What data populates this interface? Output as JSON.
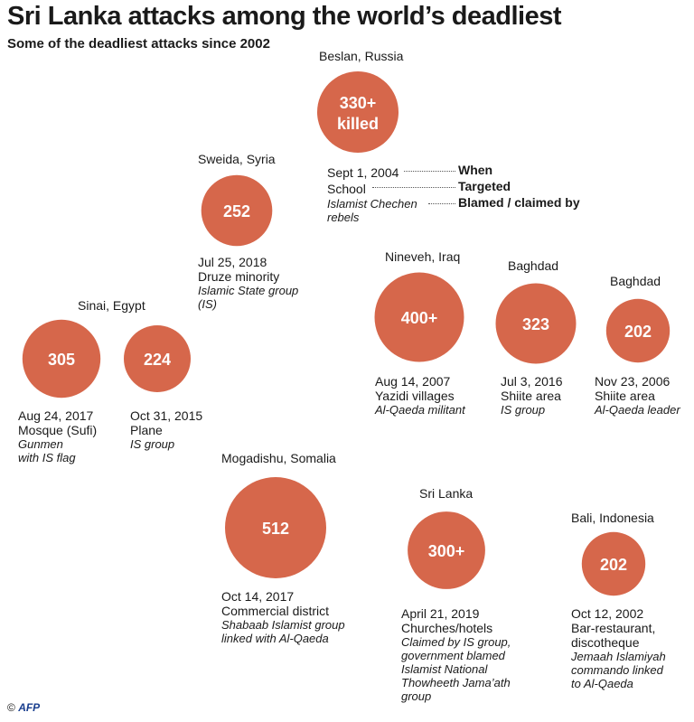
{
  "title": "Sri Lanka attacks among the world’s deadliest",
  "subtitle": "Some of the deadliest attacks since 2002",
  "colors": {
    "bubble": "#d6674b",
    "text": "#1a1a1a"
  },
  "legend": {
    "when": "When",
    "targeted": "Targeted",
    "blamed": "Blamed / claimed by"
  },
  "credit": {
    "symbol": "©",
    "logo": "AFP"
  },
  "chart_data": {
    "type": "bubble",
    "title": "Sri Lanka attacks among the world’s deadliest",
    "subtitle": "Some of the deadliest attacks since 2002",
    "unit": "killed",
    "attacks": [
      {
        "location": "Beslan, Russia",
        "label": "330+",
        "label2": "killed",
        "deaths": 330,
        "date": "Sept 1, 2004",
        "target": "School",
        "blamed": [
          "Islamist Chechen",
          "rebels"
        ]
      },
      {
        "location": "Sweida, Syria",
        "label": "252",
        "deaths": 252,
        "date": "Jul 25, 2018",
        "target": "Druze minority",
        "blamed": [
          "Islamic State group",
          "(IS)"
        ]
      },
      {
        "location": "Nineveh, Iraq",
        "label": "400+",
        "deaths": 400,
        "date": "Aug 14, 2007",
        "target": "Yazidi villages",
        "blamed": [
          "Al-Qaeda militant"
        ]
      },
      {
        "location": "Baghdad",
        "label": "323",
        "deaths": 323,
        "date": "Jul 3, 2016",
        "target": "Shiite area",
        "blamed": [
          "IS group"
        ]
      },
      {
        "location": "Baghdad",
        "label": "202",
        "deaths": 202,
        "date": "Nov 23, 2006",
        "target": "Shiite area",
        "blamed": [
          "Al-Qaeda leader"
        ]
      },
      {
        "location": "Sinai, Egypt",
        "label": "305",
        "deaths": 305,
        "date": "Aug 24, 2017",
        "target": "Mosque (Sufi)",
        "blamed": [
          "Gunmen",
          "with IS flag"
        ]
      },
      {
        "location": "",
        "label": "224",
        "deaths": 224,
        "date": "Oct 31, 2015",
        "target": "Plane",
        "blamed": [
          "IS group"
        ]
      },
      {
        "location": "Mogadishu, Somalia",
        "label": "512",
        "deaths": 512,
        "date": "Oct 14, 2017",
        "target": "Commercial district",
        "blamed": [
          "Shabaab Islamist group",
          "linked with Al-Qaeda"
        ]
      },
      {
        "location": "Sri Lanka",
        "label": "300+",
        "deaths": 300,
        "date": "April 21, 2019",
        "target": "Churches/hotels",
        "blamed": [
          "Claimed by IS group,",
          "government blamed",
          "Islamist National",
          "Thowheeth Jama’ath",
          "group"
        ]
      },
      {
        "location": "Bali, Indonesia",
        "label": "202",
        "deaths": 202,
        "date": "Oct 12, 2002",
        "target": [
          "Bar-restaurant,",
          "discotheque"
        ],
        "blamed": [
          "Jemaah Islamiyah",
          "commando linked",
          "to Al-Qaeda"
        ]
      }
    ]
  }
}
